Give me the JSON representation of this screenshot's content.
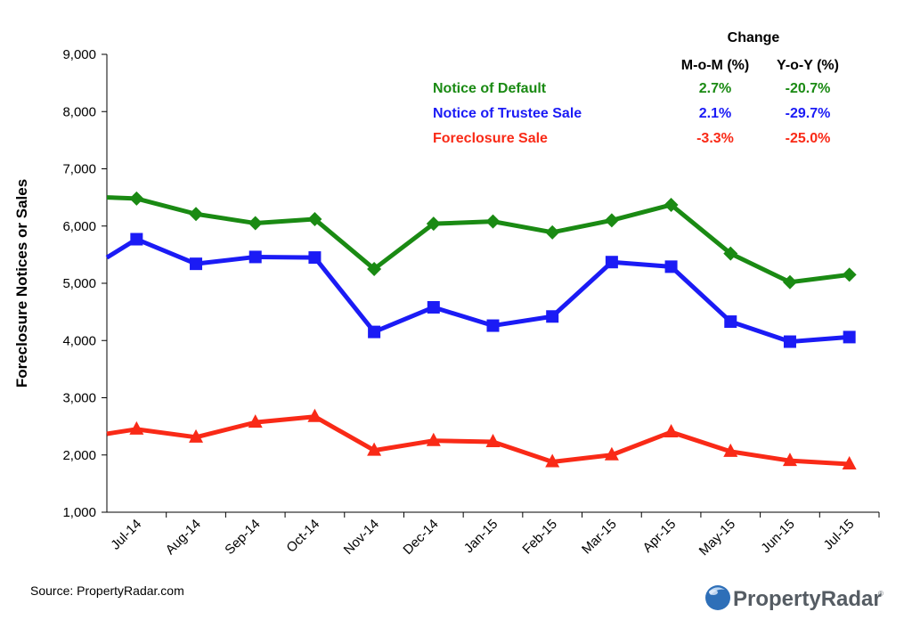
{
  "chart_data": {
    "type": "line",
    "categories": [
      "Jul-14",
      "Aug-14",
      "Sep-14",
      "Oct-14",
      "Nov-14",
      "Dec-14",
      "Jan-15",
      "Feb-15",
      "Mar-15",
      "Apr-15",
      "May-15",
      "Jun-15",
      "Jul-15"
    ],
    "ylabel": "Foreclosure Notices or Sales",
    "ylim": [
      1000,
      9000
    ],
    "yticks": [
      "1,000",
      "2,000",
      "3,000",
      "4,000",
      "5,000",
      "6,000",
      "7,000",
      "8,000",
      "9,000"
    ],
    "grid": false,
    "legend_position": "top-right",
    "legend_header": {
      "change": "Change",
      "mom": "M-o-M (%)",
      "yoy": "Y-o-Y (%)"
    },
    "series": [
      {
        "name": "Notice of Default",
        "color": "#1a8a13",
        "marker": "diamond",
        "start_value": 6500,
        "values": [
          6480,
          6210,
          6050,
          6120,
          5250,
          6040,
          6080,
          5890,
          6100,
          6370,
          5520,
          5020,
          5150
        ],
        "mom": "2.7%",
        "yoy": "-20.7%"
      },
      {
        "name": "Notice of Trustee Sale",
        "color": "#1b1bf5",
        "marker": "square",
        "start_value": 5450,
        "values": [
          5770,
          5340,
          5460,
          5450,
          4150,
          4580,
          4260,
          4420,
          5370,
          5290,
          4330,
          3980,
          4060
        ],
        "mom": "2.1%",
        "yoy": "-29.7%"
      },
      {
        "name": "Foreclosure Sale",
        "color": "#f92a17",
        "marker": "triangle",
        "start_value": 2370,
        "values": [
          2450,
          2310,
          2570,
          2670,
          2080,
          2250,
          2230,
          1880,
          2000,
          2400,
          2060,
          1900,
          1840
        ],
        "mom": "-3.3%",
        "yoy": "-25.0%"
      }
    ]
  },
  "source": "Source: PropertyRadar.com",
  "logo": {
    "text": "PropertyRadar",
    "reg": "®",
    "colors": {
      "globe": "#2e6fb8",
      "text": "#555c63"
    }
  }
}
